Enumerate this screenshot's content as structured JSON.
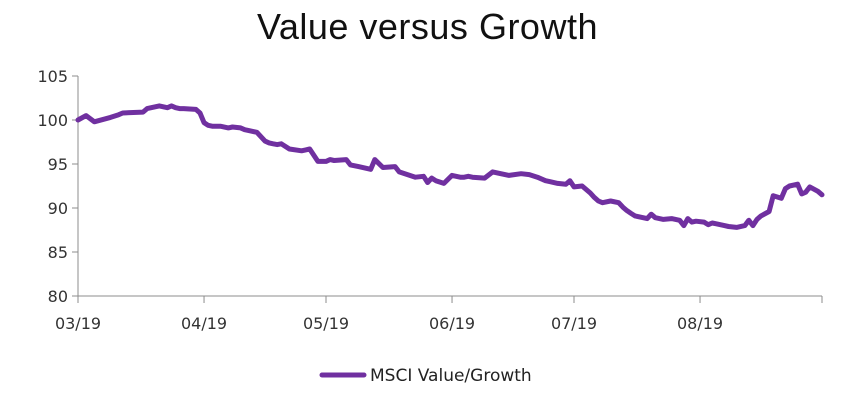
{
  "chart_data": {
    "type": "line",
    "title": "Value versus Growth",
    "xlabel": "",
    "ylabel": "",
    "ylim": [
      80,
      105
    ],
    "yticks": [
      80,
      85,
      90,
      95,
      100,
      105
    ],
    "xticks": [
      "03/19",
      "04/19",
      "05/19",
      "06/19",
      "07/19",
      "08/19"
    ],
    "xlim": [
      "2019-03-01",
      "2019-08-31"
    ],
    "grid": false,
    "legend_position": "bottom",
    "color": "#7030A0",
    "series": [
      {
        "name": "MSCI Value/Growth",
        "x": [
          "2019-03-01",
          "2019-03-03",
          "2019-03-05",
          "2019-03-09",
          "2019-03-11",
          "2019-03-12",
          "2019-03-17",
          "2019-03-18",
          "2019-03-20",
          "2019-03-21",
          "2019-03-23",
          "2019-03-24",
          "2019-03-25",
          "2019-03-26",
          "2019-03-27",
          "2019-03-30",
          "2019-03-31",
          "2019-04-01",
          "2019-04-02",
          "2019-04-03",
          "2019-04-05",
          "2019-04-07",
          "2019-04-08",
          "2019-04-10",
          "2019-04-11",
          "2019-04-12",
          "2019-04-14",
          "2019-04-16",
          "2019-04-17",
          "2019-04-18",
          "2019-04-19",
          "2019-04-20",
          "2019-04-22",
          "2019-04-25",
          "2019-04-26",
          "2019-04-27",
          "2019-04-29",
          "2019-05-01",
          "2019-05-02",
          "2019-05-03",
          "2019-05-06",
          "2019-05-07",
          "2019-05-09",
          "2019-05-12",
          "2019-05-13",
          "2019-05-15",
          "2019-05-18",
          "2019-05-19",
          "2019-05-23",
          "2019-05-25",
          "2019-05-26",
          "2019-05-27",
          "2019-05-28",
          "2019-05-30",
          "2019-06-01",
          "2019-06-02",
          "2019-06-03",
          "2019-06-04",
          "2019-06-05",
          "2019-06-06",
          "2019-06-09",
          "2019-06-11",
          "2019-06-13",
          "2019-06-15",
          "2019-06-18",
          "2019-06-20",
          "2019-06-22",
          "2019-06-24",
          "2019-06-25",
          "2019-06-27",
          "2019-06-29",
          "2019-06-30",
          "2019-07-01",
          "2019-07-03",
          "2019-07-05",
          "2019-07-06",
          "2019-07-07",
          "2019-07-08",
          "2019-07-10",
          "2019-07-12",
          "2019-07-13",
          "2019-07-14",
          "2019-07-15",
          "2019-07-16",
          "2019-07-17",
          "2019-07-19",
          "2019-07-20",
          "2019-07-21",
          "2019-07-23",
          "2019-07-25",
          "2019-07-27",
          "2019-07-28",
          "2019-07-29",
          "2019-07-30",
          "2019-07-31",
          "2019-08-02",
          "2019-08-03",
          "2019-08-04",
          "2019-08-05",
          "2019-08-07",
          "2019-08-08",
          "2019-08-10",
          "2019-08-12",
          "2019-08-13",
          "2019-08-14",
          "2019-08-15",
          "2019-08-16",
          "2019-08-18",
          "2019-08-19",
          "2019-08-21",
          "2019-08-22",
          "2019-08-23",
          "2019-08-25",
          "2019-08-26",
          "2019-08-27",
          "2019-08-28",
          "2019-08-30",
          "2019-08-31"
        ],
        "values": [
          100.0,
          100.5,
          99.8,
          100.3,
          100.6,
          100.8,
          100.9,
          101.3,
          101.5,
          101.6,
          101.4,
          101.6,
          101.4,
          101.3,
          101.3,
          101.2,
          100.8,
          99.7,
          99.4,
          99.3,
          99.3,
          99.1,
          99.2,
          99.1,
          98.9,
          98.8,
          98.6,
          97.6,
          97.4,
          97.3,
          97.2,
          97.3,
          96.7,
          96.5,
          96.6,
          96.7,
          95.3,
          95.3,
          95.5,
          95.4,
          95.5,
          94.9,
          94.7,
          94.4,
          95.5,
          94.6,
          94.7,
          94.1,
          93.5,
          93.6,
          92.9,
          93.4,
          93.1,
          92.8,
          93.7,
          93.6,
          93.5,
          93.5,
          93.6,
          93.5,
          93.4,
          94.1,
          93.9,
          93.7,
          93.9,
          93.8,
          93.5,
          93.1,
          93.0,
          92.8,
          92.7,
          93.1,
          92.4,
          92.5,
          91.7,
          91.2,
          90.8,
          90.6,
          90.8,
          90.6,
          90.1,
          89.7,
          89.4,
          89.1,
          89.0,
          88.8,
          89.3,
          88.9,
          88.7,
          88.8,
          88.6,
          88.0,
          88.8,
          88.4,
          88.5,
          88.4,
          88.1,
          88.3,
          88.2,
          88.0,
          87.9,
          87.8,
          88.0,
          88.6,
          88.0,
          88.7,
          89.1,
          89.6,
          91.4,
          91.1,
          92.2,
          92.5,
          92.7,
          91.6,
          91.8,
          92.4,
          91.9,
          91.5
        ],
        "values_tail_note": ""
      }
    ]
  }
}
